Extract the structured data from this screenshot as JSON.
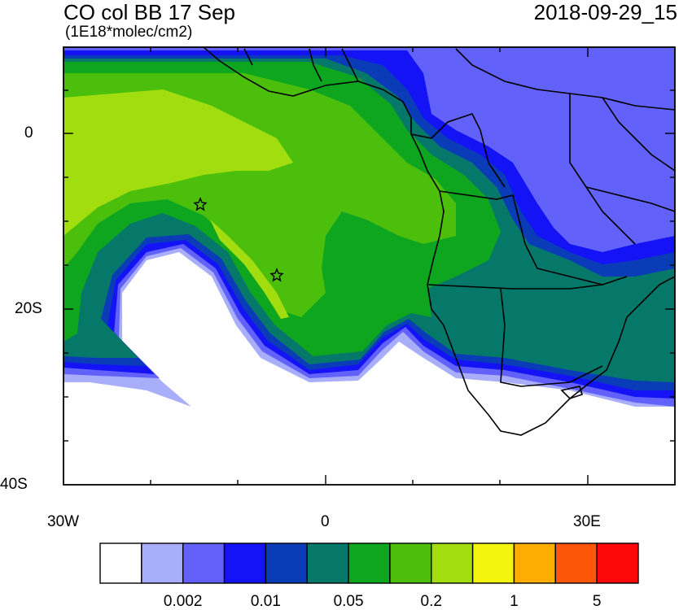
{
  "title": "CO col BB 17 Sep",
  "units": "(1E18*molec/cm2)",
  "timestamp": "2018-09-29_15",
  "axes": {
    "y_labels": [
      "0",
      "20S",
      "40S"
    ],
    "x_labels": [
      "30W",
      "0",
      "30E"
    ]
  },
  "colorbar": {
    "colors": [
      "#ffffff",
      "#a9aefa",
      "#6262fb",
      "#1313f6",
      "#0b3cb7",
      "#06786a",
      "#0ea51f",
      "#4cbf0d",
      "#a2dd10",
      "#f3f50e",
      "#fdad02",
      "#fd5608",
      "#fd0808"
    ],
    "labels": [
      "0.002",
      "0.01",
      "0.05",
      "0.2",
      "1",
      "5"
    ]
  },
  "markers": [
    "star",
    "star"
  ]
}
